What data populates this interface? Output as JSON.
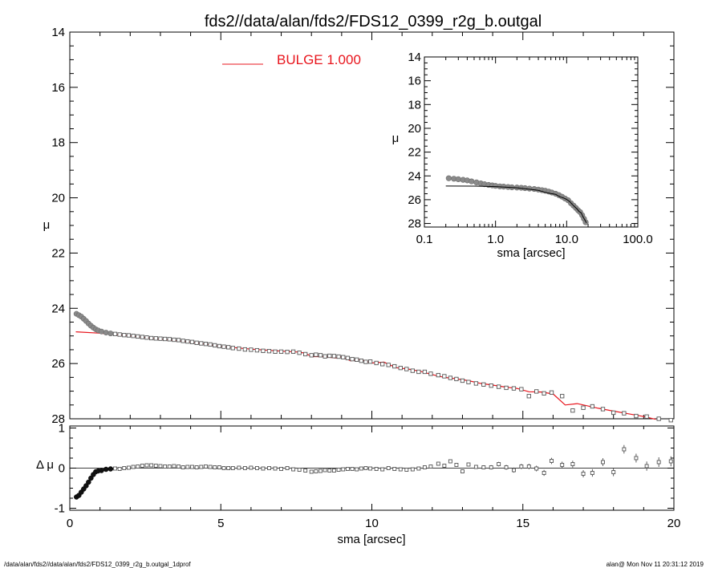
{
  "header": {
    "title": "fds2//data/alan/fds2/FDS12_0399_r2g_b.outgal"
  },
  "footer": {
    "left": "/data/alan/fds2//data/alan/fds2/FDS12_0399_r2g_b.outgal_1dprof",
    "right": "alan@  Mon Nov 11 20:31:12 2019"
  },
  "colors": {
    "model": "#e8141c",
    "data": "#808080",
    "axes": "#000000",
    "background": "#ffffff"
  },
  "chart_data": [
    {
      "id": "main",
      "type": "scatter",
      "xlabel": "sma [arcsec]",
      "ylabel": "μ",
      "xlim": [
        0,
        20
      ],
      "ylim": [
        28,
        14
      ],
      "yreversed": true,
      "xticks": [
        "0",
        "5",
        "10",
        "15",
        "20"
      ],
      "yticks": [
        "14",
        "16",
        "18",
        "20",
        "22",
        "24",
        "26",
        "28"
      ],
      "legend": {
        "placement": "top-left",
        "label": "BULGE  1.000",
        "color": "#e8141c"
      },
      "series": [
        {
          "name": "",
          "kind": "points",
          "x": [
            0.22,
            0.3,
            0.38,
            0.46,
            0.54,
            0.62,
            0.7,
            0.78,
            0.86,
            0.94,
            1.05,
            1.2,
            1.35,
            1.5,
            1.65,
            1.8,
            1.95,
            2.1,
            2.25,
            2.4,
            2.55,
            2.7,
            2.85,
            3.0,
            3.15,
            3.3,
            3.45,
            3.6,
            3.75,
            3.9,
            4.05,
            4.2,
            4.35,
            4.5,
            4.65,
            4.8,
            4.95,
            5.1,
            5.25,
            5.4,
            5.6,
            5.8,
            6.0,
            6.2,
            6.4,
            6.6,
            6.8,
            7.0,
            7.2,
            7.4,
            7.6,
            7.8,
            8.0,
            8.15,
            8.3,
            8.45,
            8.6,
            8.75,
            8.9,
            9.05,
            9.2,
            9.35,
            9.5,
            9.65,
            9.8,
            9.95,
            10.15,
            10.35,
            10.55,
            10.75,
            10.95,
            11.15,
            11.35,
            11.55,
            11.75,
            11.95,
            12.2,
            12.4,
            12.6,
            12.8,
            13.0,
            13.2,
            13.45,
            13.7,
            13.95,
            14.2,
            14.45,
            14.7,
            14.95,
            15.2,
            15.45,
            15.7,
            15.95,
            16.3,
            16.65,
            17.0,
            17.3,
            17.65,
            18.0,
            18.35,
            18.75,
            19.1,
            19.5,
            19.9
          ],
          "y": [
            24.2,
            24.25,
            24.3,
            24.38,
            24.46,
            24.55,
            24.63,
            24.7,
            24.76,
            24.8,
            24.84,
            24.88,
            24.91,
            24.93,
            24.95,
            24.97,
            24.98,
            25.0,
            25.02,
            25.04,
            25.06,
            25.08,
            25.09,
            25.1,
            25.11,
            25.12,
            25.14,
            25.15,
            25.18,
            25.2,
            25.22,
            25.25,
            25.27,
            25.29,
            25.31,
            25.34,
            25.37,
            25.39,
            25.41,
            25.44,
            25.46,
            25.49,
            25.5,
            25.52,
            25.54,
            25.55,
            25.57,
            25.57,
            25.58,
            25.57,
            25.61,
            25.66,
            25.7,
            25.68,
            25.7,
            25.74,
            25.72,
            25.73,
            25.75,
            25.77,
            25.8,
            25.84,
            25.86,
            25.9,
            25.94,
            25.93,
            25.98,
            26.02,
            26.05,
            26.1,
            26.16,
            26.2,
            26.26,
            26.3,
            26.3,
            26.37,
            26.42,
            26.46,
            26.52,
            26.56,
            26.62,
            26.67,
            26.72,
            26.76,
            26.8,
            26.84,
            26.88,
            26.9,
            26.93,
            27.18,
            27.01,
            27.08,
            27.05,
            27.18,
            27.7,
            27.6,
            27.55,
            27.65,
            27.78,
            27.8,
            27.9,
            27.92,
            28.0,
            28.05
          ],
          "color": "#808080"
        },
        {
          "name": "BULGE  1.000",
          "kind": "line",
          "x": [
            0.2,
            1.0,
            2.0,
            3.0,
            4.0,
            5.0,
            6.0,
            7.0,
            7.5,
            7.8,
            8.0,
            8.4,
            8.8,
            9.0,
            9.3,
            9.6,
            10.0,
            10.4,
            10.8,
            11.2,
            11.6,
            12.0,
            12.4,
            12.8,
            13.2,
            13.6,
            14.0,
            14.4,
            14.8,
            15.2,
            15.6,
            16.0,
            16.4,
            16.8,
            17.5,
            18.0,
            18.5,
            19.0,
            19.4
          ],
          "y": [
            24.85,
            24.9,
            25.0,
            25.12,
            25.22,
            25.38,
            25.48,
            25.55,
            25.58,
            25.62,
            25.75,
            25.75,
            25.8,
            25.75,
            25.9,
            25.85,
            25.98,
            25.95,
            26.15,
            26.2,
            26.28,
            26.4,
            26.5,
            26.55,
            26.62,
            26.72,
            26.78,
            26.85,
            26.9,
            27.02,
            27.03,
            27.1,
            27.5,
            27.45,
            27.62,
            27.72,
            27.82,
            27.92,
            28.02
          ],
          "color": "#e8141c"
        }
      ]
    },
    {
      "id": "residual",
      "type": "scatter",
      "xlabel": "sma [arcsec]",
      "ylabel": "Δ μ",
      "xlim": [
        0,
        20
      ],
      "ylim": [
        -1.05,
        1.05
      ],
      "xticks": [
        "0",
        "5",
        "10",
        "15",
        "20"
      ],
      "yticks": [
        "-1",
        "0",
        "1"
      ],
      "series": [
        {
          "name": "",
          "kind": "points",
          "x": [
            0.22,
            0.3,
            0.38,
            0.46,
            0.54,
            0.62,
            0.7,
            0.78,
            0.86,
            0.94,
            1.05,
            1.2,
            1.35,
            1.5,
            1.65,
            1.8,
            1.95,
            2.1,
            2.25,
            2.4,
            2.55,
            2.7,
            2.85,
            3.0,
            3.15,
            3.3,
            3.45,
            3.6,
            3.75,
            3.9,
            4.05,
            4.2,
            4.35,
            4.5,
            4.65,
            4.8,
            4.95,
            5.1,
            5.25,
            5.4,
            5.6,
            5.8,
            6.0,
            6.2,
            6.4,
            6.6,
            6.8,
            7.0,
            7.2,
            7.4,
            7.6,
            7.8,
            8.0,
            8.15,
            8.3,
            8.45,
            8.6,
            8.75,
            8.9,
            9.05,
            9.2,
            9.35,
            9.5,
            9.65,
            9.8,
            9.95,
            10.15,
            10.35,
            10.55,
            10.75,
            10.95,
            11.15,
            11.35,
            11.55,
            11.75,
            11.95,
            12.2,
            12.4,
            12.6,
            12.8,
            13.0,
            13.2,
            13.45,
            13.7,
            13.95,
            14.2,
            14.45,
            14.7,
            14.95,
            15.2,
            15.45,
            15.7,
            15.95,
            16.3,
            16.65,
            17.0,
            17.3,
            17.65,
            18.0,
            18.35,
            18.75,
            19.1,
            19.5,
            19.9
          ],
          "y": [
            -0.72,
            -0.68,
            -0.6,
            -0.52,
            -0.44,
            -0.35,
            -0.25,
            -0.16,
            -0.09,
            -0.07,
            -0.06,
            -0.03,
            -0.02,
            -0.01,
            -0.02,
            0.0,
            0.01,
            0.03,
            0.04,
            0.06,
            0.07,
            0.07,
            0.06,
            0.05,
            0.04,
            0.04,
            0.05,
            0.04,
            0.02,
            0.03,
            0.03,
            0.02,
            0.03,
            0.04,
            0.03,
            0.02,
            0.02,
            0.0,
            0.0,
            0.0,
            0.01,
            0.0,
            0.01,
            0.0,
            -0.01,
            0.0,
            -0.01,
            -0.02,
            0.0,
            -0.03,
            -0.04,
            -0.06,
            -0.09,
            -0.08,
            -0.07,
            -0.05,
            -0.06,
            -0.06,
            -0.04,
            -0.03,
            -0.02,
            -0.02,
            -0.03,
            -0.01,
            0.0,
            -0.01,
            -0.02,
            -0.03,
            0.0,
            -0.02,
            -0.03,
            -0.04,
            -0.03,
            -0.01,
            0.02,
            0.04,
            0.11,
            0.06,
            0.17,
            0.08,
            -0.08,
            0.09,
            0.03,
            0.02,
            0.02,
            0.1,
            0.02,
            -0.05,
            0.04,
            0.04,
            -0.01,
            -0.12,
            0.18,
            0.08,
            0.1,
            -0.14,
            -0.12,
            0.15,
            -0.1,
            0.47,
            0.25,
            0.05,
            0.15,
            0.17
          ],
          "color": "#808080"
        }
      ]
    },
    {
      "id": "inset",
      "type": "scatter",
      "xlabel": "sma [arcsec]",
      "ylabel": "μ",
      "xscale": "log",
      "xlim": [
        0.1,
        100
      ],
      "ylim": [
        28.3,
        14
      ],
      "yreversed": true,
      "xticks": [
        "0.1",
        "1.0",
        "10.0",
        "100.0"
      ],
      "yticks": [
        "14",
        "16",
        "18",
        "20",
        "22",
        "24",
        "26",
        "28"
      ],
      "series": [
        {
          "name": "",
          "kind": "points",
          "x": [
            0.22,
            0.26,
            0.3,
            0.35,
            0.4,
            0.46,
            0.54,
            0.62,
            0.7,
            0.8,
            0.9,
            1.0,
            1.15,
            1.3,
            1.5,
            1.7,
            2.0,
            2.3,
            2.6,
            3.0,
            3.5,
            4.0,
            4.5,
            5.0,
            5.6,
            6.2,
            7.0,
            7.8,
            8.6,
            9.5,
            10.5,
            11.5,
            12.5,
            13.5,
            14.5,
            15.5,
            16.5,
            17.5,
            18.5
          ],
          "y": [
            24.2,
            24.24,
            24.28,
            24.33,
            24.38,
            24.46,
            24.55,
            24.63,
            24.7,
            24.76,
            24.8,
            24.84,
            24.88,
            24.9,
            24.93,
            24.96,
            24.98,
            25.0,
            25.03,
            25.07,
            25.1,
            25.15,
            25.2,
            25.25,
            25.32,
            25.4,
            25.5,
            25.62,
            25.75,
            25.9,
            26.05,
            26.3,
            26.5,
            26.7,
            26.9,
            27.05,
            27.3,
            27.6,
            27.9
          ],
          "color": "#808080"
        },
        {
          "name": "",
          "kind": "line",
          "x": [
            0.2,
            0.5,
            1.0,
            2.0,
            3.0,
            4.0,
            5.0,
            6.0,
            7.0,
            8.0,
            9.0,
            10.0,
            11.0,
            12.0,
            13.0,
            14.0,
            15.0,
            16.0,
            17.0,
            18.0,
            19.0
          ],
          "y": [
            24.85,
            24.86,
            24.9,
            25.0,
            25.12,
            25.22,
            25.38,
            25.48,
            25.55,
            25.75,
            25.85,
            25.98,
            26.15,
            26.4,
            26.6,
            26.78,
            27.0,
            27.1,
            27.45,
            27.7,
            27.95
          ],
          "color": "#000000"
        }
      ]
    }
  ]
}
